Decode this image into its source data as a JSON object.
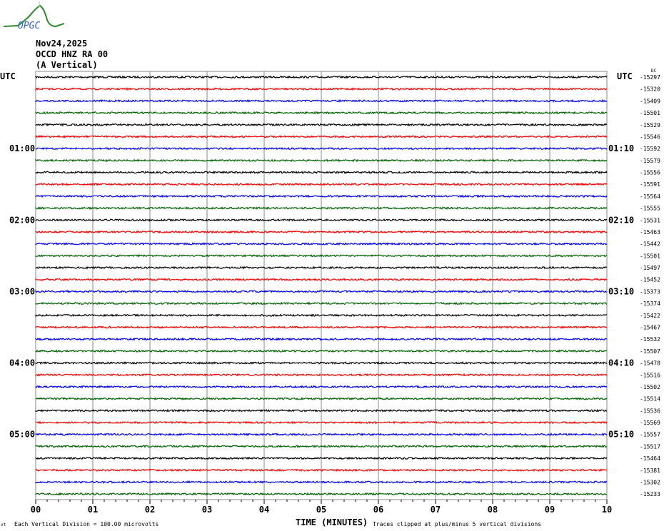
{
  "logo": {
    "text": "OPGC"
  },
  "header": {
    "date": "Nov24,2025",
    "station": "OCCD HNZ RA 00",
    "component": "(A Vertical)"
  },
  "chart_data": {
    "type": "line",
    "subtype": "helicorder",
    "left_axis_title": "UTC",
    "right_axis_title": "UTC",
    "dc_label": "DC",
    "left_time_labels": [
      "",
      "01:00",
      "02:00",
      "03:00",
      "04:00",
      "05:00"
    ],
    "right_time_labels": [
      "",
      "01:10",
      "02:10",
      "03:10",
      "04:10",
      "05:10"
    ],
    "labels_every_n_traces": 6,
    "trace_colors": [
      "#000000",
      "#ff0000",
      "#0000ff",
      "#006400"
    ],
    "dc_offsets": [
      -15297,
      -15320,
      -15409,
      -15501,
      -15529,
      -15546,
      -15592,
      -15579,
      -15556,
      -15591,
      -15564,
      -15555,
      -15531,
      -15463,
      -15442,
      -15501,
      -15497,
      -15452,
      -15373,
      -15374,
      -15422,
      -15467,
      -15532,
      -15507,
      -15478,
      -15516,
      -15502,
      -15514,
      -15536,
      -15569,
      -15557,
      -15517,
      -15464,
      -15381,
      -15302,
      -15233
    ],
    "x_ticks": [
      "00",
      "01",
      "02",
      "03",
      "04",
      "05",
      "06",
      "07",
      "08",
      "09",
      "10"
    ],
    "xlim": [
      0,
      10
    ],
    "xlabel": "TIME (MINUTES)",
    "grid": true,
    "scale_note": "Each Vertical Division =  100.00 microvolts",
    "clip_note": "Traces clipped at plus/minus 5 vertical divisions",
    "corner_mark": "vt"
  }
}
